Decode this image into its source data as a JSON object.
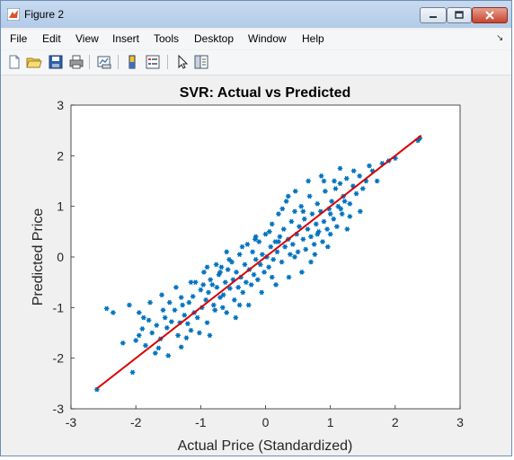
{
  "window": {
    "title": "Figure 2"
  },
  "menu": [
    "File",
    "Edit",
    "View",
    "Insert",
    "Tools",
    "Desktop",
    "Window",
    "Help"
  ],
  "toolbar": [
    "new-figure-icon",
    "open-file-icon",
    "save-icon",
    "print-icon",
    "link-plot-icon",
    "colorbar-icon",
    "legend-icon",
    "pointer-icon",
    "property-editor-icon"
  ],
  "colors": {
    "points": "#0072bd",
    "fit_line": "#d90000",
    "axes_bg": "#ffffff",
    "figure_bg": "#f0f0f0"
  },
  "chart_data": {
    "type": "scatter",
    "title": "SVR: Actual vs Predicted",
    "xlabel": "Actual Price (Standardized)",
    "ylabel": "Predicted Price",
    "xlim": [
      -3,
      3
    ],
    "ylim": [
      -3,
      3
    ],
    "xticks": [
      "-3",
      "-2",
      "-1",
      "0",
      "1",
      "2",
      "3"
    ],
    "yticks": [
      "3",
      "2",
      "1",
      "0",
      "-1",
      "-2",
      "-3"
    ],
    "marker": "*",
    "fit_line": {
      "x": [
        -2.6,
        2.4
      ],
      "y": [
        -2.6,
        2.4
      ]
    },
    "points": [
      [
        -2.6,
        -2.62
      ],
      [
        -2.45,
        -1.02
      ],
      [
        -2.35,
        -1.1
      ],
      [
        -2.1,
        -0.95
      ],
      [
        -2.05,
        -2.28
      ],
      [
        -2.0,
        -1.65
      ],
      [
        -1.95,
        -1.55
      ],
      [
        -1.9,
        -1.42
      ],
      [
        -1.85,
        -1.75
      ],
      [
        -1.8,
        -1.25
      ],
      [
        -1.75,
        -1.5
      ],
      [
        -1.7,
        -1.9
      ],
      [
        -1.65,
        -1.8
      ],
      [
        -1.62,
        -1.62
      ],
      [
        -1.6,
        -0.75
      ],
      [
        -1.55,
        -1.2
      ],
      [
        -1.52,
        -1.4
      ],
      [
        -1.5,
        -1.95
      ],
      [
        -1.45,
        -1.28
      ],
      [
        -1.4,
        -1.05
      ],
      [
        -1.35,
        -1.55
      ],
      [
        -1.32,
        -1.3
      ],
      [
        -1.3,
        -1.78
      ],
      [
        -1.25,
        -1.15
      ],
      [
        -1.2,
        -1.32
      ],
      [
        -1.18,
        -0.9
      ],
      [
        -1.15,
        -1.45
      ],
      [
        -1.12,
        -0.78
      ],
      [
        -1.1,
        -1.1
      ],
      [
        -1.08,
        -0.5
      ],
      [
        -1.05,
        -1.2
      ],
      [
        -1.0,
        -0.65
      ],
      [
        -0.98,
        -1.0
      ],
      [
        -0.95,
        -0.3
      ],
      [
        -0.92,
        -0.85
      ],
      [
        -0.9,
        -1.3
      ],
      [
        -0.88,
        -0.7
      ],
      [
        -0.85,
        -0.45
      ],
      [
        -0.82,
        -0.55
      ],
      [
        -0.8,
        -0.95
      ],
      [
        -0.78,
        -1.05
      ],
      [
        -0.75,
        -0.6
      ],
      [
        -0.72,
        -0.35
      ],
      [
        -0.7,
        -0.8
      ],
      [
        -0.68,
        -0.2
      ],
      [
        -0.65,
        -0.75
      ],
      [
        -0.62,
        -0.5
      ],
      [
        -0.6,
        -1.1
      ],
      [
        -0.58,
        -0.25
      ],
      [
        -0.55,
        -0.62
      ],
      [
        -0.52,
        -0.1
      ],
      [
        -0.5,
        -0.45
      ],
      [
        -0.48,
        -0.85
      ],
      [
        -0.45,
        -0.3
      ],
      [
        -0.42,
        -0.6
      ],
      [
        -0.4,
        0.05
      ],
      [
        -0.38,
        -0.4
      ],
      [
        -0.35,
        -0.7
      ],
      [
        -0.32,
        -0.15
      ],
      [
        -0.3,
        -0.5
      ],
      [
        -0.28,
        0.25
      ],
      [
        -0.25,
        -0.25
      ],
      [
        -0.22,
        -0.55
      ],
      [
        -0.2,
        0.1
      ],
      [
        -0.18,
        -0.35
      ],
      [
        -0.15,
        -0.05
      ],
      [
        -0.12,
        -0.45
      ],
      [
        -0.1,
        0.3
      ],
      [
        -0.08,
        -0.15
      ],
      [
        -0.05,
        0.05
      ],
      [
        -0.02,
        -0.3
      ],
      [
        0.0,
        0.45
      ],
      [
        0.02,
        0.0
      ],
      [
        0.05,
        -0.2
      ],
      [
        0.08,
        0.2
      ],
      [
        0.1,
        0.65
      ],
      [
        0.12,
        -0.05
      ],
      [
        0.15,
        0.3
      ],
      [
        0.18,
        0.1
      ],
      [
        0.2,
        0.85
      ],
      [
        0.22,
        0.4
      ],
      [
        0.25,
        -0.1
      ],
      [
        0.28,
        0.55
      ],
      [
        0.3,
        0.2
      ],
      [
        0.32,
        1.1
      ],
      [
        0.35,
        0.35
      ],
      [
        0.38,
        0.05
      ],
      [
        0.4,
        0.7
      ],
      [
        0.42,
        0.25
      ],
      [
        0.45,
        0.9
      ],
      [
        0.48,
        0.45
      ],
      [
        0.5,
        0.1
      ],
      [
        0.52,
        0.6
      ],
      [
        0.55,
        1.0
      ],
      [
        0.58,
        0.35
      ],
      [
        0.6,
        0.75
      ],
      [
        0.62,
        0.15
      ],
      [
        0.65,
        0.55
      ],
      [
        0.68,
        1.2
      ],
      [
        0.7,
        0.4
      ],
      [
        0.72,
        0.85
      ],
      [
        0.75,
        0.25
      ],
      [
        0.78,
        0.65
      ],
      [
        0.8,
        1.05
      ],
      [
        0.82,
        0.5
      ],
      [
        0.85,
        0.9
      ],
      [
        0.88,
        0.3
      ],
      [
        0.9,
        0.7
      ],
      [
        0.92,
        1.3
      ],
      [
        0.95,
        0.55
      ],
      [
        0.98,
        0.95
      ],
      [
        1.0,
        0.45
      ],
      [
        1.02,
        1.1
      ],
      [
        1.05,
        0.75
      ],
      [
        1.08,
        1.35
      ],
      [
        1.1,
        0.6
      ],
      [
        1.12,
        1.0
      ],
      [
        1.15,
        1.45
      ],
      [
        1.18,
        0.85
      ],
      [
        1.2,
        1.2
      ],
      [
        1.25,
        1.55
      ],
      [
        1.3,
        1.05
      ],
      [
        1.35,
        1.4
      ],
      [
        1.4,
        1.25
      ],
      [
        1.45,
        1.6
      ],
      [
        1.5,
        1.35
      ],
      [
        1.55,
        1.5
      ],
      [
        1.6,
        1.8
      ],
      [
        1.65,
        1.7
      ],
      [
        1.72,
        1.5
      ],
      [
        1.8,
        1.85
      ],
      [
        1.9,
        1.9
      ],
      [
        2.0,
        1.95
      ],
      [
        2.35,
        2.3
      ],
      [
        2.38,
        2.35
      ],
      [
        -2.2,
        -1.7
      ],
      [
        -1.88,
        -1.2
      ],
      [
        -1.78,
        -0.9
      ],
      [
        -1.68,
        -1.35
      ],
      [
        -1.58,
        -1.05
      ],
      [
        -1.48,
        -0.9
      ],
      [
        -1.38,
        -0.6
      ],
      [
        -1.28,
        -0.95
      ],
      [
        -1.22,
        -1.6
      ],
      [
        -1.02,
        -1.5
      ],
      [
        -0.96,
        -0.55
      ],
      [
        -0.86,
        -1.55
      ],
      [
        -0.76,
        -0.15
      ],
      [
        -0.66,
        -1.0
      ],
      [
        -0.56,
        -0.05
      ],
      [
        -0.46,
        -1.2
      ],
      [
        -0.36,
        0.2
      ],
      [
        -0.26,
        -0.95
      ],
      [
        -0.16,
        0.35
      ],
      [
        -0.06,
        -0.7
      ],
      [
        0.06,
        0.5
      ],
      [
        0.16,
        -0.55
      ],
      [
        0.26,
        0.95
      ],
      [
        0.36,
        -0.4
      ],
      [
        0.46,
        1.3
      ],
      [
        0.56,
        -0.3
      ],
      [
        0.66,
        1.5
      ],
      [
        0.76,
        0.05
      ],
      [
        0.86,
        1.6
      ],
      [
        0.96,
        0.2
      ],
      [
        1.06,
        1.5
      ],
      [
        1.16,
        0.95
      ],
      [
        1.26,
        0.55
      ],
      [
        1.36,
        1.7
      ],
      [
        1.46,
        0.9
      ],
      [
        -1.95,
        -1.1
      ],
      [
        -1.3,
        -0.8
      ],
      [
        -0.9,
        -0.2
      ],
      [
        -0.4,
        -0.95
      ],
      [
        0.35,
        1.2
      ],
      [
        0.7,
        -0.1
      ],
      [
        1.15,
        1.75
      ],
      [
        1.3,
        0.8
      ],
      [
        -0.7,
        -0.3
      ],
      [
        0.1,
        -0.4
      ],
      [
        -0.15,
        0.4
      ],
      [
        0.45,
        0.0
      ],
      [
        0.8,
        0.45
      ],
      [
        -1.15,
        -0.5
      ],
      [
        -0.6,
        0.1
      ],
      [
        0.2,
        0.3
      ],
      [
        0.58,
        0.9
      ],
      [
        1.0,
        0.85
      ],
      [
        1.22,
        1.1
      ],
      [
        0.9,
        1.5
      ]
    ]
  }
}
